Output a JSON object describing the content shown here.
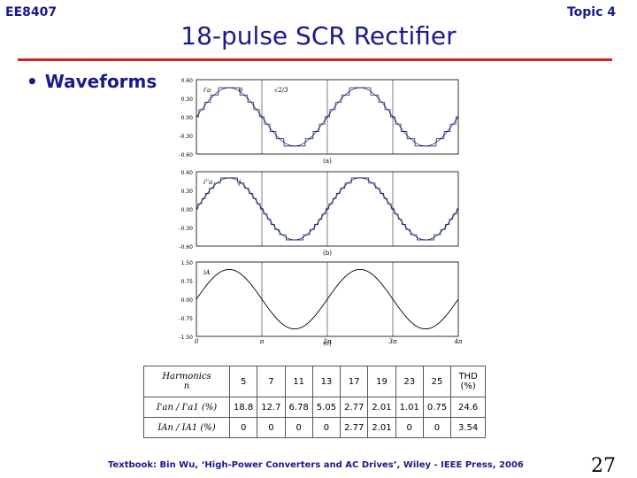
{
  "header": {
    "course": "EE8407",
    "topic": "Topic 4"
  },
  "title": "18-pulse SCR Rectifier",
  "bullet": "Waveforms",
  "chart_data": [
    {
      "type": "line",
      "subplot_label": "(a)",
      "ylim": [
        -0.6,
        0.6
      ],
      "y_ticks": [
        "0.60",
        "0.30",
        "0.00",
        "-0.30",
        "-0.60"
      ],
      "annotations": [
        "i'a",
        "θ",
        "√2/3"
      ],
      "series": [
        {
          "waveform": "stepped quasi-square with sinusoid",
          "amplitude": 0.47
        }
      ]
    },
    {
      "type": "line",
      "subplot_label": "(b)",
      "ylim": [
        -0.6,
        0.6
      ],
      "y_ticks": [
        "0.60",
        "0.30",
        "0.00",
        "-0.30",
        "-0.60"
      ],
      "annotations": [
        "i''a",
        "j"
      ],
      "series": [
        {
          "waveform": "multi-step",
          "amplitude": 0.5
        }
      ]
    },
    {
      "type": "line",
      "subplot_label": "(c)",
      "ylim": [
        -1.5,
        1.5
      ],
      "y_ticks": [
        "1.50",
        "0.75",
        "0.00",
        "-0.75",
        "-1.50"
      ],
      "x_ticks": [
        "0",
        "π",
        "2π",
        "3π",
        "4π"
      ],
      "annotations": [
        "iA"
      ],
      "series": [
        {
          "waveform": "near-sinusoidal 18-pulse line current",
          "amplitude": 1.2
        }
      ]
    }
  ],
  "table": {
    "header": {
      "label": "Harmonics",
      "sub": "n",
      "cols": [
        "5",
        "7",
        "11",
        "13",
        "17",
        "19",
        "23",
        "25"
      ],
      "thd": "THD",
      "thd_unit": "(%)"
    },
    "rows": [
      {
        "label": "I'an / I'a1 (%)",
        "values": [
          "18.8",
          "12.7",
          "6.78",
          "5.05",
          "2.77",
          "2.01",
          "1.01",
          "0.75"
        ],
        "thd": "24.6"
      },
      {
        "label": "IAn / IA1 (%)",
        "values": [
          "0",
          "0",
          "0",
          "0",
          "2.77",
          "2.01",
          "0",
          "0"
        ],
        "thd": "3.54"
      }
    ]
  },
  "footer": "Textbook: Bin Wu, ‘High-Power Converters and AC Drives’, Wiley - IEEE Press, 2006",
  "page_number": "27"
}
